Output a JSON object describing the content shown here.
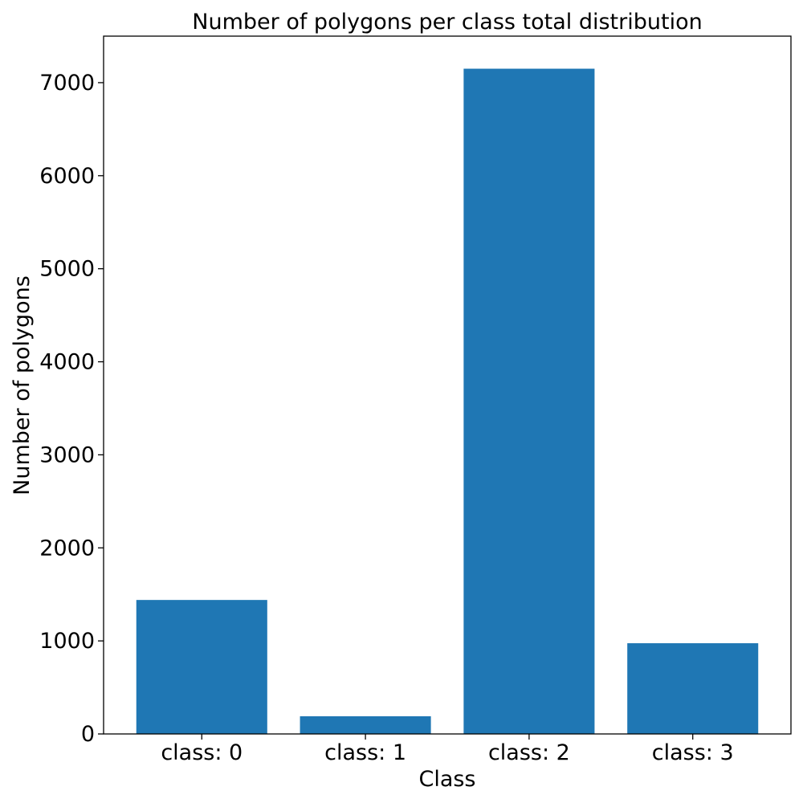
{
  "chart_data": {
    "type": "bar",
    "title": "Number of polygons per class total distribution",
    "xlabel": "Class",
    "ylabel": "Number of polygons",
    "categories": [
      "class: 0",
      "class: 1",
      "class: 2",
      "class: 3"
    ],
    "values": [
      1440,
      190,
      7150,
      975
    ],
    "ylim": [
      0,
      7500
    ],
    "yticks": [
      0,
      1000,
      2000,
      3000,
      4000,
      5000,
      6000,
      7000
    ],
    "grid": false,
    "bar_color": "#1f77b4"
  }
}
